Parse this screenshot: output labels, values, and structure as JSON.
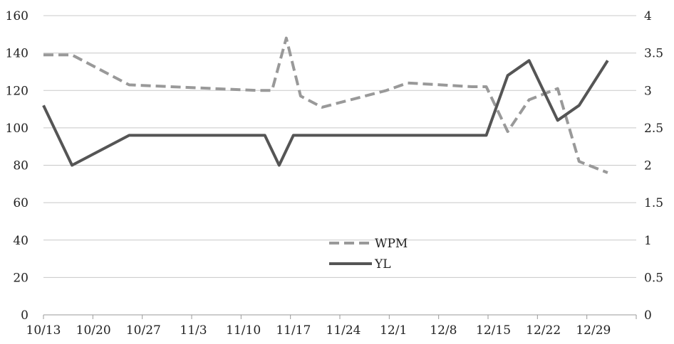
{
  "chart_data": {
    "type": "line",
    "title": "",
    "xlabel": "",
    "ylabel": "",
    "x_tick_labels": [
      "10/13",
      "10/20",
      "10/27",
      "11/3",
      "11/10",
      "11/17",
      "11/24",
      "12/1",
      "12/8",
      "12/15",
      "12/22",
      "12/29"
    ],
    "x_range_days": [
      0,
      83
    ],
    "y_left": {
      "range": [
        0,
        160
      ],
      "ticks": [
        0,
        20,
        40,
        60,
        80,
        100,
        120,
        140,
        160
      ]
    },
    "y_right": {
      "range": [
        0,
        4
      ],
      "ticks": [
        "0",
        "0.5",
        "1",
        "1.5",
        "2",
        "2.5",
        "3",
        "3.5",
        "4"
      ]
    },
    "grid": "horizontal",
    "legend": "center",
    "series": [
      {
        "name": "WPM",
        "axis": "left",
        "style": "dashed",
        "color": "#999999",
        "x": [
          "10/13",
          "10/17",
          "10/25",
          "11/12",
          "11/14",
          "11/16",
          "11/18",
          "11/21",
          "11/30",
          "12/3",
          "12/12",
          "12/14",
          "12/17",
          "12/20",
          "12/24",
          "12/27",
          "12/31"
        ],
        "values": [
          139,
          139,
          123,
          120,
          120,
          148,
          117,
          111,
          120,
          124,
          122,
          122,
          98,
          115,
          121,
          82,
          76
        ]
      },
      {
        "name": "YL",
        "axis": "right",
        "style": "solid",
        "color": "#555555",
        "x": [
          "10/13",
          "10/17",
          "10/25",
          "11/13",
          "11/15",
          "11/17",
          "12/14",
          "12/17",
          "12/20",
          "12/24",
          "12/27",
          "12/31"
        ],
        "values": [
          2.8,
          2.0,
          2.4,
          2.4,
          2.0,
          2.4,
          2.4,
          3.2,
          3.4,
          2.6,
          2.8,
          3.4
        ]
      }
    ]
  }
}
